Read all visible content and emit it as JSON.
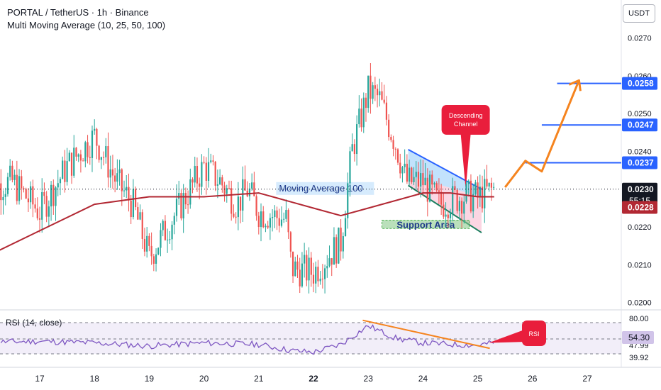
{
  "header": {
    "title": "PORTAL / TetherUS · 1h · Binance",
    "indicator": "Multi Moving Average (10, 25, 50, 100)",
    "currency": "USDT"
  },
  "rsi_panel": {
    "title": "RSI (14, close)",
    "axis_ticks": [
      "80.00",
      "47.99",
      "39.92"
    ],
    "current_value": "54.30"
  },
  "annotations": {
    "moving_average_label": "Moving Average 100",
    "support_label": "Support Area",
    "channel_label": [
      "Descending",
      "Channel"
    ],
    "rsi_label": "RSI"
  },
  "price_badges": {
    "current_price": "0.0230",
    "countdown": "55:15",
    "ma_price": "0.0228",
    "target_1": "0.0237",
    "target_2": "0.0247",
    "target_3": "0.0258"
  },
  "colors": {
    "up_candle": "#26a69a",
    "down_candle": "#ef5350",
    "ma_line": "#b22833",
    "target_line": "#2962ff",
    "projection": "#f5841f",
    "rsi_line": "#7e57c2",
    "callout_red": "#e91e3c",
    "support_box": "#81c784"
  },
  "chart_data": {
    "type": "candlestick",
    "title": "PORTAL / TetherUS · 1h · Binance",
    "x_tick_labels": [
      "17",
      "18",
      "19",
      "20",
      "21",
      "22",
      "23",
      "24",
      "25",
      "26",
      "27"
    ],
    "y_tick_labels": [
      "0.0270",
      "0.0260",
      "0.0250",
      "0.0240",
      "0.0220",
      "0.0210",
      "0.0200"
    ],
    "ylim": [
      0.0197,
      0.0282
    ],
    "close_path": [
      [
        "16",
        0.023
      ],
      [
        "16.5",
        0.0232
      ],
      [
        "17",
        0.0224
      ],
      [
        "17.5",
        0.0236
      ],
      [
        "18",
        0.0244
      ],
      [
        "18.4",
        0.0232
      ],
      [
        "18.7",
        0.0226
      ],
      [
        "19",
        0.0212
      ],
      [
        "19.5",
        0.0224
      ],
      [
        "20",
        0.0236
      ],
      [
        "20.3",
        0.0232
      ],
      [
        "20.6",
        0.0226
      ],
      [
        "20.8",
        0.023
      ],
      [
        "21",
        0.0224
      ],
      [
        "21.5",
        0.0222
      ],
      [
        "21.6",
        0.0209
      ],
      [
        "22",
        0.0208
      ],
      [
        "22.5",
        0.0216
      ],
      [
        "22.7",
        0.024
      ],
      [
        "23",
        0.0256
      ],
      [
        "23.2",
        0.0254
      ],
      [
        "23.5",
        0.0242
      ],
      [
        "23.7",
        0.0232
      ],
      [
        "24",
        0.0232
      ],
      [
        "24.3",
        0.0226
      ],
      [
        "24.7",
        0.0228
      ],
      [
        "25",
        0.0228
      ],
      [
        "25.3",
        0.023
      ]
    ],
    "moving_average_100": [
      [
        "16",
        0.0212
      ],
      [
        "17",
        0.0219
      ],
      [
        "18",
        0.0226
      ],
      [
        "19",
        0.0228
      ],
      [
        "20",
        0.0228
      ],
      [
        "21",
        0.0229
      ],
      [
        "21.5",
        0.0227
      ],
      [
        "22",
        0.0225
      ],
      [
        "22.5",
        0.0223
      ],
      [
        "23",
        0.0225
      ],
      [
        "24",
        0.0229
      ],
      [
        "24.5",
        0.0229
      ],
      [
        "25",
        0.0228
      ],
      [
        "25.3",
        0.0228
      ]
    ],
    "target_levels": [
      0.0237,
      0.0247,
      0.0258
    ],
    "rsi": {
      "ylim": [
        37,
        92
      ],
      "series": [
        [
          "16",
          55
        ],
        [
          "17",
          56
        ],
        [
          "18",
          54
        ],
        [
          "19",
          50
        ],
        [
          "20",
          54
        ],
        [
          "21",
          52
        ],
        [
          "21.6",
          44
        ],
        [
          "22",
          42
        ],
        [
          "22.5",
          52
        ],
        [
          "23",
          76
        ],
        [
          "23.5",
          60
        ],
        [
          "24",
          54
        ],
        [
          "24.5",
          52
        ],
        [
          "25",
          51
        ],
        [
          "25.3",
          54.3
        ]
      ]
    }
  }
}
